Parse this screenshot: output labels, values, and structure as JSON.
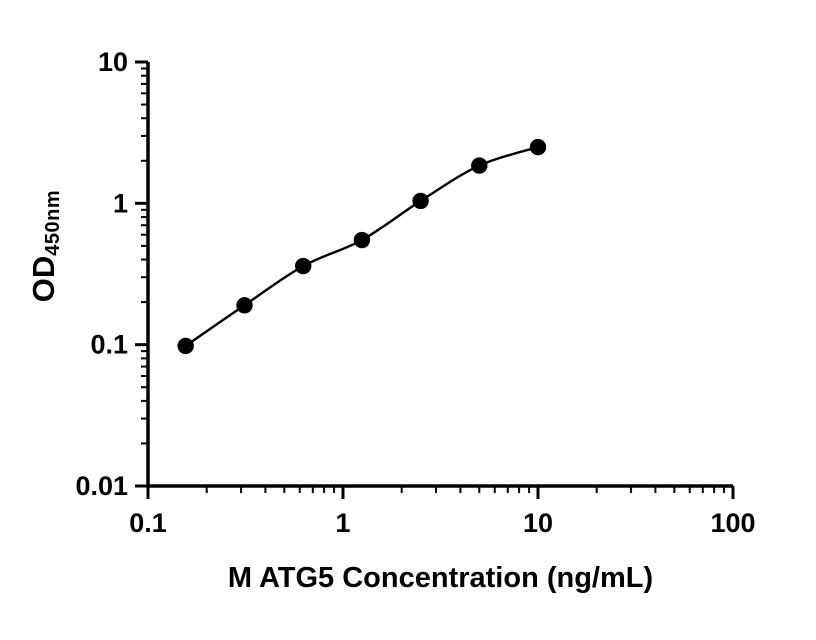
{
  "chart_data": {
    "type": "scatter",
    "title": "",
    "xlabel": "M ATG5 Concentration (ng/mL)",
    "ylabel_main": "OD",
    "ylabel_sub": "450nm",
    "x_scale": "log",
    "y_scale": "log",
    "xlim": [
      0.1,
      100
    ],
    "ylim": [
      0.01,
      10
    ],
    "grid": false,
    "legend": false,
    "marker_color": "#000000",
    "line_color": "#000000",
    "x_ticks": [
      {
        "value": 0.1,
        "label": "0.1"
      },
      {
        "value": 1,
        "label": "1"
      },
      {
        "value": 10,
        "label": "10"
      },
      {
        "value": 100,
        "label": "100"
      }
    ],
    "y_ticks": [
      {
        "value": 0.01,
        "label": "0.01"
      },
      {
        "value": 0.1,
        "label": "0.1"
      },
      {
        "value": 1,
        "label": "1"
      },
      {
        "value": 10,
        "label": "10"
      }
    ],
    "points": [
      {
        "x": 0.156,
        "y": 0.098
      },
      {
        "x": 0.3125,
        "y": 0.19
      },
      {
        "x": 0.625,
        "y": 0.36
      },
      {
        "x": 1.25,
        "y": 0.55
      },
      {
        "x": 2.5,
        "y": 1.04
      },
      {
        "x": 5,
        "y": 1.85
      },
      {
        "x": 10,
        "y": 2.5
      }
    ],
    "curve": "smooth-fit"
  }
}
